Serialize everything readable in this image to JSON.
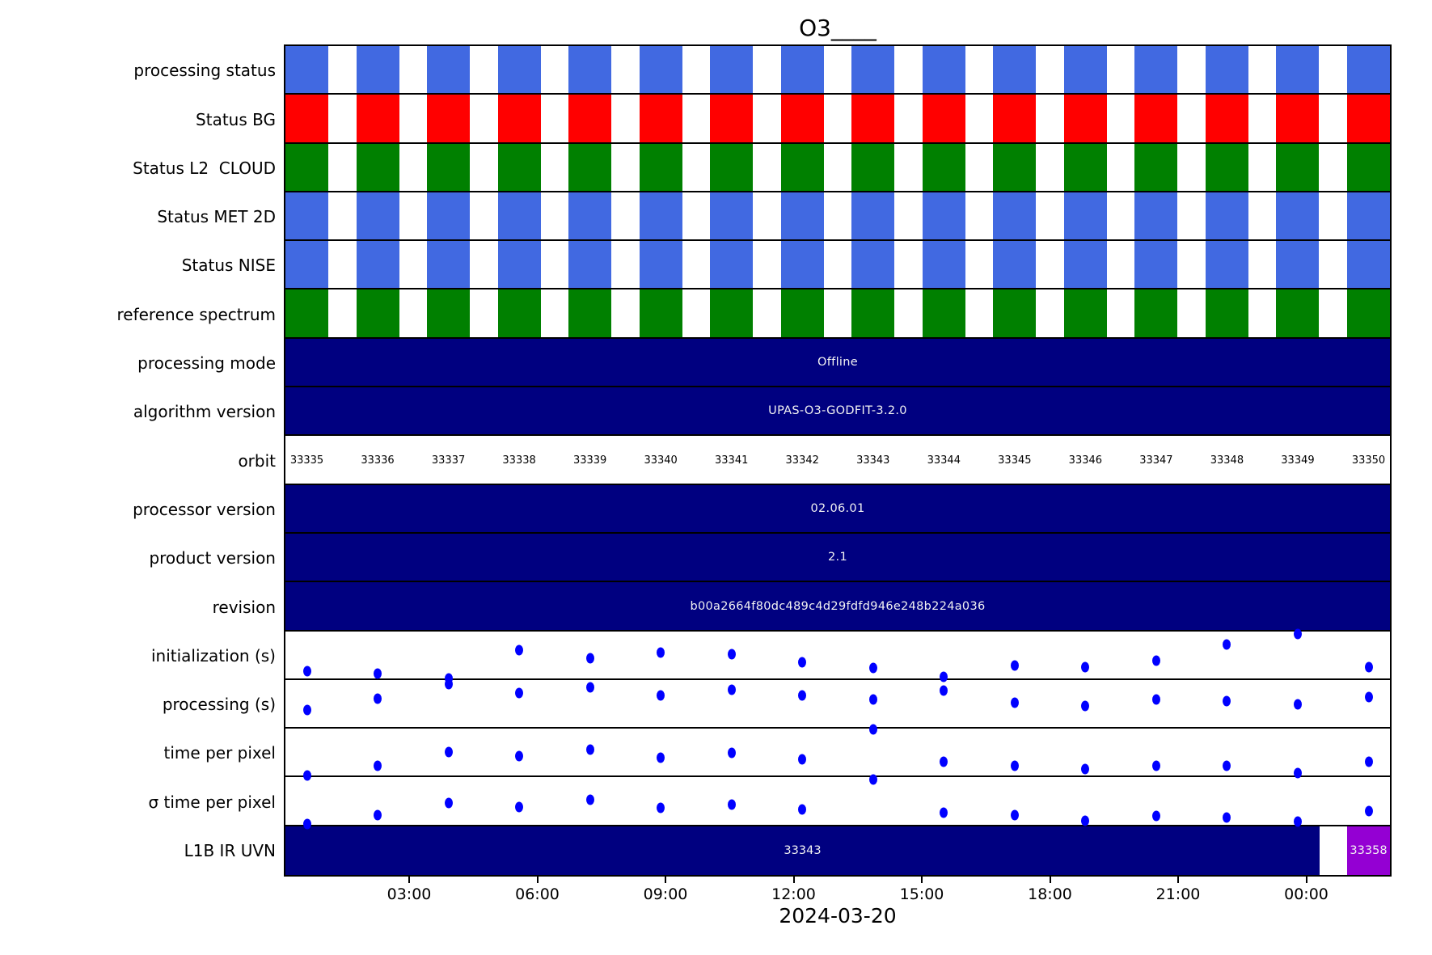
{
  "colors": {
    "bar_navy": "#000080",
    "dot_blue": "#0000ff",
    "l1b_purple": "#9400d3",
    "status_blue": "#4169e1",
    "status_red": "#ff0000",
    "status_green": "#008000"
  },
  "chart_data": {
    "type": "table",
    "title": "O3____",
    "x_date": "2024-03-20",
    "x_ticks": [
      "03:00",
      "06:00",
      "09:00",
      "12:00",
      "15:00",
      "18:00",
      "21:00",
      "00:00"
    ],
    "orbit_row_label": "orbit",
    "orbits": [
      33335,
      33336,
      33337,
      33338,
      33339,
      33340,
      33341,
      33342,
      33343,
      33344,
      33345,
      33346,
      33347,
      33348,
      33349,
      33350
    ],
    "status_rows": [
      {
        "label": "processing status",
        "color": "#4169e1",
        "orbits_covered": "all"
      },
      {
        "label": "Status BG",
        "color": "#ff0000",
        "orbits_covered": "all"
      },
      {
        "label": "Status L2  CLOUD",
        "color": "#008000",
        "orbits_covered": "all"
      },
      {
        "label": "Status MET 2D",
        "color": "#4169e1",
        "orbits_covered": "all"
      },
      {
        "label": "Status NISE",
        "color": "#4169e1",
        "orbits_covered": "all"
      },
      {
        "label": "reference spectrum",
        "color": "#008000",
        "orbits_covered": "all"
      }
    ],
    "info_rows": [
      {
        "label": "processing mode",
        "value": "Offline"
      },
      {
        "label": "algorithm version",
        "value": "UPAS-O3-GODFIT-3.2.0"
      },
      {
        "label": "processor version",
        "value": "02.06.01"
      },
      {
        "label": "product version",
        "value": "2.1"
      },
      {
        "label": "revision",
        "value": "b00a2664f80dc489c4d29fdfd946e248b224a036"
      }
    ],
    "scatter_series": [
      {
        "name": "initialization (s)",
        "relative_levels": [
          0.15,
          0.1,
          0.0,
          0.6,
          0.43,
          0.56,
          0.52,
          0.34,
          0.22,
          0.03,
          0.28,
          0.25,
          0.38,
          0.73,
          0.95,
          0.24
        ]
      },
      {
        "name": "processing (s)",
        "relative_levels": [
          0.37,
          0.6,
          0.92,
          0.72,
          0.85,
          0.68,
          0.8,
          0.67,
          0.58,
          0.78,
          0.52,
          0.45,
          0.58,
          0.55,
          0.48,
          0.63
        ]
      },
      {
        "name": "time per pixel",
        "relative_levels": [
          0.0,
          0.2,
          0.5,
          0.42,
          0.56,
          0.38,
          0.48,
          0.34,
          0.98,
          0.3,
          0.2,
          0.14,
          0.2,
          0.2,
          0.06,
          0.3
        ]
      },
      {
        "name": "σ time per pixel",
        "relative_levels": [
          0.02,
          0.2,
          0.45,
          0.38,
          0.53,
          0.36,
          0.43,
          0.32,
          0.95,
          0.26,
          0.2,
          0.08,
          0.18,
          0.16,
          0.07,
          0.28
        ]
      }
    ],
    "l1b_row": {
      "label": "L1B IR UVN",
      "main_block": "33343",
      "last_block": "33358",
      "last_block_color": "#9400d3"
    },
    "row_order": [
      {
        "type": "status",
        "ref": 0
      },
      {
        "type": "status",
        "ref": 1
      },
      {
        "type": "status",
        "ref": 2
      },
      {
        "type": "status",
        "ref": 3
      },
      {
        "type": "status",
        "ref": 4
      },
      {
        "type": "status",
        "ref": 5
      },
      {
        "type": "info",
        "ref": 0
      },
      {
        "type": "info",
        "ref": 1
      },
      {
        "type": "orbits"
      },
      {
        "type": "info",
        "ref": 2
      },
      {
        "type": "info",
        "ref": 3
      },
      {
        "type": "info",
        "ref": 4
      },
      {
        "type": "scatter",
        "ref": 0
      },
      {
        "type": "scatter",
        "ref": 1
      },
      {
        "type": "scatter",
        "ref": 2
      },
      {
        "type": "scatter",
        "ref": 3
      },
      {
        "type": "l1b"
      }
    ]
  }
}
